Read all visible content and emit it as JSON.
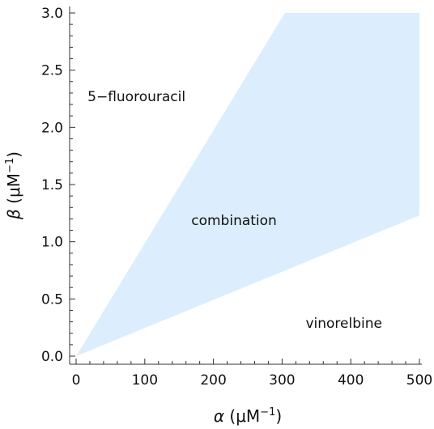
{
  "chart_data": {
    "type": "area",
    "xlabel": {
      "symbol": "α",
      "unit_open": " (μM",
      "unit_sup": "−1",
      "unit_close": ")"
    },
    "ylabel": {
      "symbol": "β",
      "unit_open": " (μM",
      "unit_sup": "−1",
      "unit_close": ")"
    },
    "xlim": [
      0,
      500
    ],
    "ylim": [
      0,
      3.0
    ],
    "x_ticks": [
      0,
      100,
      200,
      300,
      400,
      500
    ],
    "x_tick_labels": [
      "0",
      "100",
      "200",
      "300",
      "400",
      "500"
    ],
    "y_ticks": [
      0.0,
      0.5,
      1.0,
      1.5,
      2.0,
      2.5,
      3.0
    ],
    "y_tick_labels": [
      "0.0",
      "0.5",
      "1.0",
      "1.5",
      "2.0",
      "2.5",
      "3.0"
    ],
    "grid": false,
    "fill_color": "#dceefd",
    "region_polygon": [
      {
        "x": 0,
        "y": 0.0
      },
      {
        "x": 304,
        "y": 3.0
      },
      {
        "x": 500,
        "y": 3.0
      },
      {
        "x": 500,
        "y": 1.23
      }
    ],
    "annotations": [
      {
        "text": "5−fluorouracil",
        "x": 88,
        "y": 2.27
      },
      {
        "text": "combination",
        "x": 230,
        "y": 1.19
      },
      {
        "text": "vinorelbine",
        "x": 390,
        "y": 0.29
      }
    ]
  }
}
